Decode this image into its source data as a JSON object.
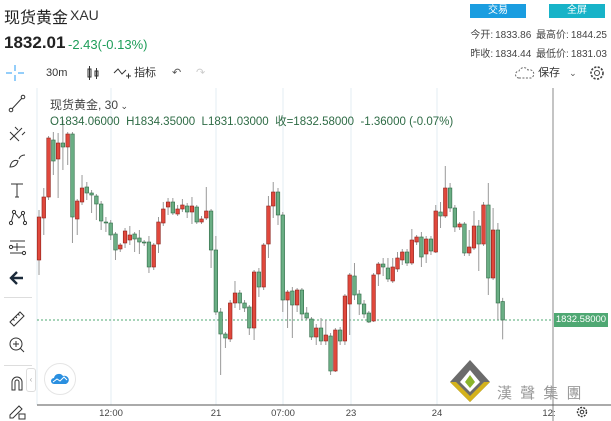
{
  "header": {
    "title": "现货黄金",
    "symbol": "XAU",
    "price": "1832.01",
    "change": "-2.43(-0.13%)",
    "trade_button": "交易",
    "fullscreen_button": "全屏",
    "open_label": "今开:",
    "open": "1833.86",
    "high_label": "最高价:",
    "high": "1844.25",
    "prev_close_label": "昨收:",
    "prev_close": "1834.44",
    "low_label": "最低价:",
    "low": "1831.03"
  },
  "toolbar": {
    "interval": "30m",
    "indicators": "指标",
    "save": "保存"
  },
  "legend": {
    "name": "现货黄金, 30",
    "open": "O1834.06000",
    "high": "H1834.35000",
    "low": "L1831.03000",
    "close": "收=1832.58000",
    "change": "-1.36000 (-0.07%)"
  },
  "logo_text": "漢 聲 集 團",
  "colors": {
    "up": "#e0483c",
    "down": "#6aae84",
    "trade_button": "#1a9de0",
    "fullscreen_button": "#17b3c8",
    "price_label": "#4fa873"
  },
  "left_tools": [
    "crosshair-icon",
    "trend-line-icon",
    "pitchfork-icon",
    "brush-icon",
    "text-icon",
    "pattern-icon",
    "measure-icon",
    "back-arrow-icon",
    "ruler-icon",
    "zoom-in-icon",
    "magnet-icon",
    "lock-drawing-icon"
  ],
  "chart_data": {
    "type": "candlestick",
    "ylim": [
      1825.78,
      1850.58
    ],
    "grid": true,
    "x_ticks": [
      "12:00",
      "21",
      "07:00",
      "23",
      "24",
      "12:"
    ],
    "current_price_label": "1832.58000",
    "ohlc": [
      [
        1837.38,
        1841.38,
        1836.18,
        1840.82
      ],
      [
        1840.74,
        1843.14,
        1839.38,
        1842.42
      ],
      [
        1842.42,
        1847.3,
        1842.18,
        1847.14
      ],
      [
        1846.98,
        1847.62,
        1844.18,
        1845.3
      ],
      [
        1845.46,
        1847.54,
        1842.34,
        1846.74
      ],
      [
        1846.74,
        1848.58,
        1844.58,
        1846.42
      ],
      [
        1846.42,
        1847.62,
        1844.98,
        1847.46
      ],
      [
        1847.46,
        1847.62,
        1838.74,
        1840.82
      ],
      [
        1840.66,
        1842.26,
        1839.38,
        1842.1
      ],
      [
        1842.02,
        1844.18,
        1841.78,
        1843.14
      ],
      [
        1843.22,
        1843.62,
        1842.18,
        1842.74
      ],
      [
        1842.74,
        1842.98,
        1841.14,
        1842.58
      ],
      [
        1842.5,
        1842.66,
        1840.58,
        1841.86
      ],
      [
        1841.86,
        1842.1,
        1839.78,
        1840.5
      ],
      [
        1840.42,
        1840.82,
        1839.62,
        1840.34
      ],
      [
        1840.34,
        1840.58,
        1838.98,
        1839.38
      ],
      [
        1839.46,
        1839.62,
        1837.38,
        1838.18
      ],
      [
        1838.26,
        1838.74,
        1838.02,
        1838.58
      ],
      [
        1838.74,
        1839.94,
        1838.34,
        1839.7
      ],
      [
        1838.98,
        1840.1,
        1838.58,
        1839.38
      ],
      [
        1839.46,
        1839.62,
        1838.02,
        1839.06
      ],
      [
        1839.14,
        1839.78,
        1837.86,
        1838.82
      ],
      [
        1838.82,
        1838.98,
        1838.5,
        1838.74
      ],
      [
        1838.82,
        1839.3,
        1836.34,
        1836.82
      ],
      [
        1836.82,
        1838.74,
        1836.58,
        1838.58
      ],
      [
        1838.66,
        1840.82,
        1837.94,
        1840.42
      ],
      [
        1840.34,
        1842.02,
        1840.1,
        1841.46
      ],
      [
        1841.62,
        1842.34,
        1840.98,
        1842.02
      ],
      [
        1842.02,
        1842.34,
        1840.98,
        1841.14
      ],
      [
        1841.06,
        1841.78,
        1840.9,
        1841.46
      ],
      [
        1841.46,
        1842.26,
        1841.22,
        1841.78
      ],
      [
        1841.7,
        1841.94,
        1840.74,
        1841.22
      ],
      [
        1841.22,
        1842.42,
        1840.26,
        1841.7
      ],
      [
        1841.62,
        1841.78,
        1840.26,
        1840.42
      ],
      [
        1840.42,
        1840.9,
        1840.26,
        1840.66
      ],
      [
        1840.74,
        1843.22,
        1840.58,
        1841.3
      ],
      [
        1841.3,
        1841.46,
        1836.74,
        1838.18
      ],
      [
        1838.18,
        1839.3,
        1832.98,
        1833.22
      ],
      [
        1833.22,
        1833.54,
        1828.18,
        1831.46
      ],
      [
        1831.46,
        1831.62,
        1830.34,
        1831.14
      ],
      [
        1831.06,
        1834.18,
        1830.82,
        1833.94
      ],
      [
        1833.94,
        1835.7,
        1833.54,
        1834.74
      ],
      [
        1834.74,
        1834.98,
        1833.38,
        1833.94
      ],
      [
        1833.94,
        1834.18,
        1833.22,
        1833.54
      ],
      [
        1833.62,
        1833.78,
        1831.38,
        1831.94
      ],
      [
        1831.94,
        1836.58,
        1830.98,
        1836.42
      ],
      [
        1836.42,
        1836.74,
        1834.42,
        1835.22
      ],
      [
        1835.22,
        1838.74,
        1834.98,
        1838.58
      ],
      [
        1838.66,
        1842.5,
        1837.54,
        1841.7
      ],
      [
        1841.7,
        1843.62,
        1840.74,
        1842.82
      ],
      [
        1842.82,
        1843.14,
        1840.18,
        1840.98
      ],
      [
        1840.98,
        1841.22,
        1833.22,
        1834.18
      ],
      [
        1834.18,
        1834.98,
        1831.94,
        1834.82
      ],
      [
        1834.9,
        1835.22,
        1831.14,
        1833.78
      ],
      [
        1833.78,
        1835.14,
        1833.22,
        1834.98
      ],
      [
        1834.98,
        1835.14,
        1832.58,
        1833.06
      ],
      [
        1833.14,
        1833.62,
        1832.58,
        1832.74
      ],
      [
        1832.66,
        1832.82,
        1830.98,
        1831.22
      ],
      [
        1831.22,
        1832.26,
        1830.58,
        1831.94
      ],
      [
        1831.94,
        1832.74,
        1830.58,
        1830.9
      ],
      [
        1830.9,
        1832.58,
        1830.58,
        1831.38
      ],
      [
        1831.3,
        1831.54,
        1828.18,
        1828.5
      ],
      [
        1828.5,
        1831.94,
        1828.42,
        1831.78
      ],
      [
        1831.78,
        1832.02,
        1830.58,
        1830.9
      ],
      [
        1830.9,
        1834.66,
        1830.58,
        1834.5
      ],
      [
        1833.86,
        1836.34,
        1831.38,
        1836.18
      ],
      [
        1836.1,
        1837.14,
        1834.18,
        1834.58
      ],
      [
        1834.66,
        1834.98,
        1832.98,
        1833.86
      ],
      [
        1833.86,
        1834.18,
        1832.74,
        1833.06
      ],
      [
        1833.14,
        1833.3,
        1832.34,
        1832.42
      ],
      [
        1832.5,
        1836.34,
        1832.42,
        1836.18
      ],
      [
        1836.26,
        1837.22,
        1835.3,
        1837.06
      ],
      [
        1837.06,
        1837.54,
        1836.1,
        1836.82
      ],
      [
        1836.74,
        1837.54,
        1835.62,
        1835.86
      ],
      [
        1835.7,
        1837.54,
        1835.54,
        1836.82
      ],
      [
        1836.66,
        1838.02,
        1836.42,
        1837.54
      ],
      [
        1837.38,
        1838.26,
        1836.98,
        1838.02
      ],
      [
        1838.02,
        1838.26,
        1836.9,
        1837.14
      ],
      [
        1837.14,
        1839.86,
        1836.98,
        1838.98
      ],
      [
        1838.82,
        1839.38,
        1838.58,
        1839.22
      ],
      [
        1839.22,
        1839.62,
        1836.82,
        1837.62
      ],
      [
        1837.86,
        1839.3,
        1837.14,
        1839.06
      ],
      [
        1839.06,
        1839.3,
        1837.78,
        1838.1
      ],
      [
        1838.02,
        1841.78,
        1837.94,
        1841.3
      ],
      [
        1841.22,
        1842.02,
        1839.94,
        1840.9
      ],
      [
        1840.9,
        1844.9,
        1840.74,
        1843.14
      ],
      [
        1843.14,
        1843.54,
        1841.22,
        1841.54
      ],
      [
        1841.54,
        1841.78,
        1839.62,
        1840.02
      ],
      [
        1840.02,
        1840.42,
        1839.78,
        1840.26
      ],
      [
        1840.26,
        1840.42,
        1837.7,
        1837.94
      ],
      [
        1837.94,
        1839.78,
        1837.7,
        1838.42
      ],
      [
        1838.34,
        1841.3,
        1838.18,
        1840.1
      ],
      [
        1840.1,
        1840.58,
        1836.5,
        1838.66
      ],
      [
        1838.66,
        1842.02,
        1838.5,
        1841.78
      ],
      [
        1841.78,
        1843.54,
        1834.58,
        1835.94
      ],
      [
        1835.94,
        1841.54,
        1835.78,
        1839.78
      ],
      [
        1839.78,
        1840.34,
        1832.58,
        1833.94
      ],
      [
        1834.06,
        1834.35,
        1831.03,
        1832.58
      ]
    ],
    "last_price": 1832.58
  }
}
